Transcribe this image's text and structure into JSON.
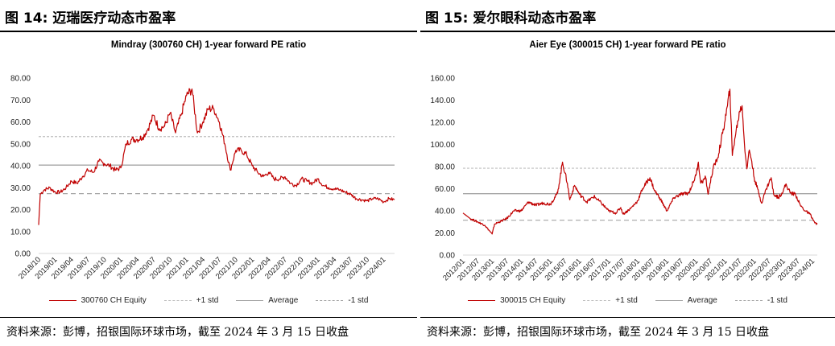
{
  "panels": [
    {
      "figure_title": "图 14: 迈瑞医疗动态市盈率",
      "source": "资料来源：彭博，招银国际环球市场，截至 2024 年 3 月 15 日收盘",
      "legend": [
        "300760 CH Equity",
        "+1 std",
        "Average",
        "-1 std"
      ]
    },
    {
      "figure_title": "图 15: 爱尔眼科动态市盈率",
      "source": "资料来源：彭博，招银国际环球市场，截至 2024 年 3 月 15 日收盘",
      "legend": [
        "300015 CH Equity",
        "+1 std",
        "Average",
        "-1 std"
      ]
    }
  ],
  "colors": {
    "series": "#c00000",
    "std": "#bfbfbf",
    "average": "#a6a6a6"
  },
  "chart_data": [
    {
      "type": "line",
      "title": "Mindray (300760 CH) 1-year forward PE ratio",
      "ylim": [
        0,
        80
      ],
      "yticks": [
        "0.00",
        "10.00",
        "20.00",
        "30.00",
        "40.00",
        "50.00",
        "60.00",
        "70.00",
        "80.00"
      ],
      "xrange": [
        "2018/10",
        "2024/03"
      ],
      "xticks": [
        "2018/10",
        "2019/01",
        "2019/04",
        "2019/07",
        "2019/10",
        "2020/01",
        "2020/04",
        "2020/07",
        "2020/10",
        "2021/01",
        "2021/04",
        "2021/07",
        "2021/10",
        "2022/01",
        "2022/04",
        "2022/07",
        "2022/10",
        "2023/01",
        "2023/04",
        "2023/07",
        "2023/10",
        "2024/01"
      ],
      "std_plus": 53.3,
      "average": 40.3,
      "std_minus": 27.3,
      "series": {
        "name": "300760 CH Equity",
        "x": [
          "2018/10",
          "2018/10",
          "2018/11",
          "2018/12",
          "2019/01",
          "2019/02",
          "2019/03",
          "2019/04",
          "2019/05",
          "2019/06",
          "2019/07",
          "2019/08",
          "2019/09",
          "2019/10",
          "2019/11",
          "2019/12",
          "2020/01",
          "2020/02",
          "2020/03",
          "2020/04",
          "2020/05",
          "2020/06",
          "2020/07",
          "2020/08",
          "2020/09",
          "2020/10",
          "2020/11",
          "2020/12",
          "2021/01",
          "2021/02",
          "2021/03",
          "2021/04",
          "2021/05",
          "2021/06",
          "2021/07",
          "2021/08",
          "2021/09",
          "2021/10",
          "2021/11",
          "2021/12",
          "2022/01",
          "2022/02",
          "2022/03",
          "2022/04",
          "2022/05",
          "2022/06",
          "2022/07",
          "2022/08",
          "2022/09",
          "2022/10",
          "2022/11",
          "2022/12",
          "2023/01",
          "2023/02",
          "2023/03",
          "2023/04",
          "2023/05",
          "2023/06",
          "2023/07",
          "2023/08",
          "2023/09",
          "2023/10",
          "2023/11",
          "2023/12",
          "2024/01",
          "2024/02",
          "2024/03"
        ],
        "values": [
          13,
          27,
          29,
          30,
          28,
          28,
          30,
          33,
          32,
          35,
          38,
          37,
          42,
          41,
          40,
          38,
          39,
          50,
          52,
          52,
          53,
          57,
          63,
          57,
          58,
          64,
          55,
          63,
          72,
          75,
          55,
          60,
          66,
          66,
          60,
          50,
          38,
          47,
          47,
          45,
          40,
          37,
          35,
          37,
          34,
          34,
          35,
          32,
          31,
          34,
          33,
          32,
          34,
          31,
          30,
          29.5,
          29,
          28,
          27,
          25,
          24.5,
          24,
          25,
          25,
          23.5,
          25,
          24.5
        ]
      }
    },
    {
      "type": "line",
      "title": "Aier Eye (300015 CH) 1-year forward PE ratio",
      "ylim": [
        0,
        160
      ],
      "yticks": [
        "0.00",
        "20.00",
        "40.00",
        "60.00",
        "80.00",
        "100.00",
        "120.00",
        "140.00",
        "160.00"
      ],
      "xrange": [
        "2012/01",
        "2024/03"
      ],
      "xticks": [
        "2012/01",
        "2012/07",
        "2013/01",
        "2013/07",
        "2014/01",
        "2014/07",
        "2015/01",
        "2015/07",
        "2016/01",
        "2016/07",
        "2017/01",
        "2017/07",
        "2018/01",
        "2018/07",
        "2019/01",
        "2019/07",
        "2020/01",
        "2020/07",
        "2021/01",
        "2021/07",
        "2022/01",
        "2022/07",
        "2023/01",
        "2023/07",
        "2024/01"
      ],
      "std_plus": 78.5,
      "average": 55.5,
      "std_minus": 31.5,
      "series": {
        "name": "300015 CH Equity",
        "x": [
          "2012/01",
          "2012/04",
          "2012/07",
          "2012/10",
          "2013/01",
          "2013/02",
          "2013/04",
          "2013/07",
          "2013/10",
          "2014/01",
          "2014/04",
          "2014/07",
          "2014/10",
          "2015/01",
          "2015/04",
          "2015/06",
          "2015/08",
          "2015/09",
          "2015/11",
          "2016/01",
          "2016/04",
          "2016/07",
          "2016/10",
          "2017/01",
          "2017/04",
          "2017/06",
          "2017/07",
          "2017/10",
          "2018/01",
          "2018/03",
          "2018/06",
          "2018/08",
          "2018/10",
          "2019/01",
          "2019/04",
          "2019/07",
          "2019/10",
          "2020/01",
          "2020/02",
          "2020/03",
          "2020/05",
          "2020/06",
          "2020/08",
          "2020/10",
          "2020/12",
          "2021/02",
          "2021/03",
          "2021/04",
          "2021/05",
          "2021/07",
          "2021/08",
          "2021/09",
          "2021/10",
          "2021/11",
          "2021/12",
          "2022/01",
          "2022/03",
          "2022/04",
          "2022/06",
          "2022/08",
          "2022/09",
          "2022/11",
          "2023/01",
          "2023/02",
          "2023/04",
          "2023/06",
          "2023/08",
          "2023/10",
          "2023/12",
          "2024/02",
          "2024/03"
        ],
        "values": [
          38,
          33,
          30,
          27,
          19,
          28,
          30,
          33,
          40,
          40,
          48,
          45,
          47,
          46,
          56,
          84,
          65,
          50,
          63,
          55,
          48,
          53,
          47,
          40,
          38,
          43,
          37,
          42,
          49,
          60,
          70,
          58,
          52,
          40,
          52,
          55,
          56,
          72,
          84,
          65,
          70,
          55,
          78,
          88,
          110,
          135,
          150,
          90,
          105,
          130,
          135,
          100,
          78,
          95,
          85,
          70,
          55,
          47,
          60,
          70,
          55,
          52,
          58,
          64,
          56,
          55,
          45,
          40,
          37,
          29,
          28
        ]
      }
    }
  ]
}
